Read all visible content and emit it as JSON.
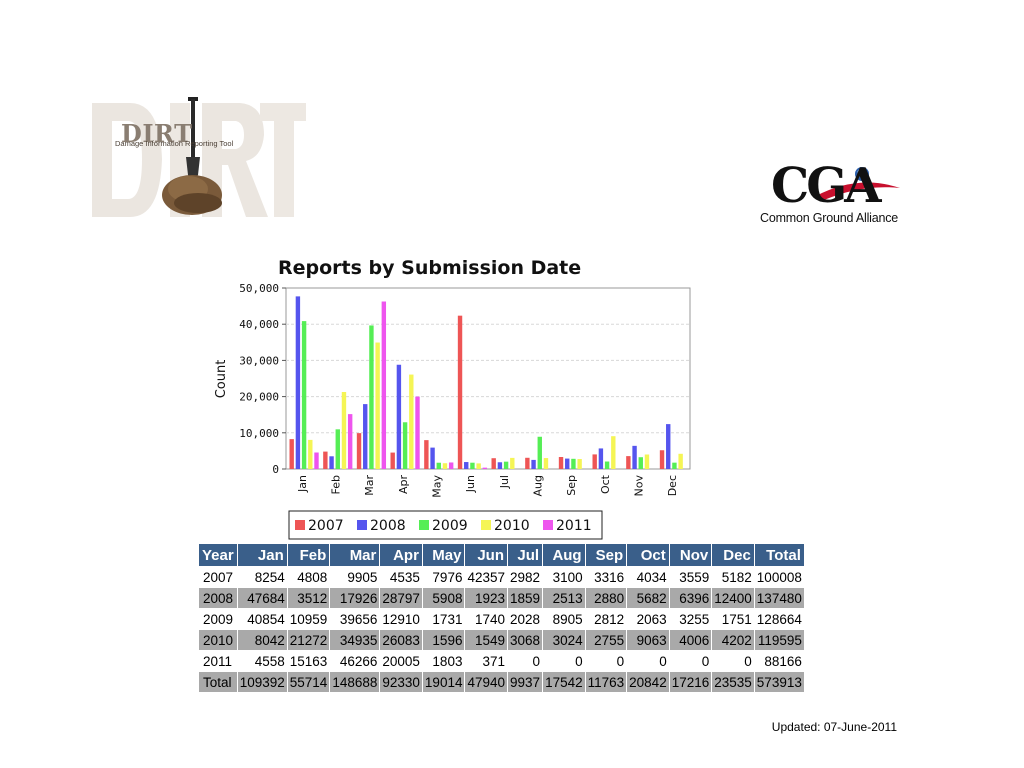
{
  "logos": {
    "dirt": {
      "word": "DIRT",
      "tagline": "Damage Information Reporting Tool"
    },
    "cga": {
      "word": "CGA",
      "tagline": "Common Ground Alliance"
    }
  },
  "chart_data": {
    "type": "bar",
    "title": "Reports by Submission Date",
    "xlabel": "",
    "ylabel": "Count",
    "ylim": [
      0,
      50000
    ],
    "yticks": [
      "0",
      "10,000",
      "20,000",
      "30,000",
      "40,000",
      "50,000"
    ],
    "ytick_values": [
      0,
      10000,
      20000,
      30000,
      40000,
      50000
    ],
    "grid": true,
    "legend_position": "bottom",
    "categories": [
      "Jan",
      "Feb",
      "Mar",
      "Apr",
      "May",
      "Jun",
      "Jul",
      "Aug",
      "Sep",
      "Oct",
      "Nov",
      "Dec"
    ],
    "series": [
      {
        "name": "2007",
        "color": "#ee5555",
        "values": [
          8254,
          4808,
          9905,
          4535,
          7976,
          42357,
          2982,
          3100,
          3316,
          4034,
          3559,
          5182
        ]
      },
      {
        "name": "2008",
        "color": "#5555ee",
        "values": [
          47684,
          3512,
          17926,
          28797,
          5908,
          1923,
          1859,
          2513,
          2880,
          5682,
          6396,
          12400
        ]
      },
      {
        "name": "2009",
        "color": "#55ee55",
        "values": [
          40854,
          10959,
          39656,
          12910,
          1731,
          1740,
          2028,
          8905,
          2812,
          2063,
          3255,
          1751
        ]
      },
      {
        "name": "2010",
        "color": "#f5f555",
        "values": [
          8042,
          21272,
          34935,
          26083,
          1596,
          1549,
          3068,
          3024,
          2755,
          9063,
          4006,
          4202
        ]
      },
      {
        "name": "2011",
        "color": "#ee55ee",
        "values": [
          4558,
          15163,
          46266,
          20005,
          1803,
          371,
          0,
          0,
          0,
          0,
          0,
          0
        ]
      }
    ]
  },
  "table": {
    "headers": [
      "Year",
      "Jan",
      "Feb",
      "Mar",
      "Apr",
      "May",
      "Jun",
      "Jul",
      "Aug",
      "Sep",
      "Oct",
      "Nov",
      "Dec",
      "Total"
    ],
    "rows": [
      [
        "2007",
        "8254",
        "4808",
        "9905",
        "4535",
        "7976",
        "42357",
        "2982",
        "3100",
        "3316",
        "4034",
        "3559",
        "5182",
        "100008"
      ],
      [
        "2008",
        "47684",
        "3512",
        "17926",
        "28797",
        "5908",
        "1923",
        "1859",
        "2513",
        "2880",
        "5682",
        "6396",
        "12400",
        "137480"
      ],
      [
        "2009",
        "40854",
        "10959",
        "39656",
        "12910",
        "1731",
        "1740",
        "2028",
        "8905",
        "2812",
        "2063",
        "3255",
        "1751",
        "128664"
      ],
      [
        "2010",
        "8042",
        "21272",
        "34935",
        "26083",
        "1596",
        "1549",
        "3068",
        "3024",
        "2755",
        "9063",
        "4006",
        "4202",
        "119595"
      ],
      [
        "2011",
        "4558",
        "15163",
        "46266",
        "20005",
        "1803",
        "371",
        "0",
        "0",
        "0",
        "0",
        "0",
        "0",
        "88166"
      ],
      [
        "Total",
        "109392",
        "55714",
        "148688",
        "92330",
        "19014",
        "47940",
        "9937",
        "17542",
        "11763",
        "20842",
        "17216",
        "23535",
        "573913"
      ]
    ]
  },
  "footer": {
    "updated": "Updated: 07-June-2011"
  },
  "colors": {
    "table_header": "#3a5f8a",
    "table_shade": "#a9a9a9"
  }
}
